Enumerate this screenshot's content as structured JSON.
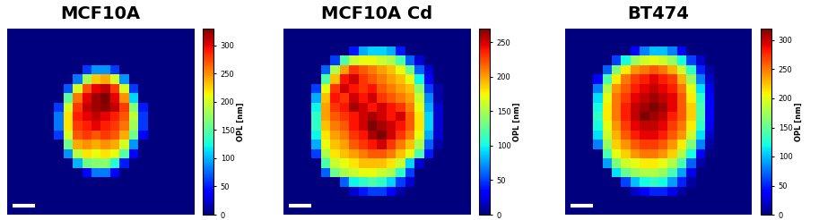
{
  "chart_data": [
    {
      "type": "heatmap",
      "title": "MCF10A",
      "tick_labels": false,
      "colorbar_label": "OPL [nm]",
      "colorbar_lim": [
        0,
        330
      ],
      "colorbar_ticks": [
        0,
        50,
        100,
        150,
        200,
        250,
        300
      ],
      "cells": [
        [
          0,
          0,
          0,
          0,
          0,
          0,
          0,
          0,
          0,
          0,
          0,
          0,
          0,
          0,
          0,
          0,
          0,
          0,
          0,
          0
        ],
        [
          0,
          0,
          0,
          0,
          0,
          0,
          0,
          0,
          0,
          0,
          0,
          0,
          0,
          0,
          0,
          0,
          0,
          0,
          0,
          0
        ],
        [
          0,
          0,
          0,
          0,
          0,
          0,
          0,
          0,
          0,
          0,
          0,
          0,
          0,
          0,
          0,
          0,
          0,
          0,
          0,
          0
        ],
        [
          0,
          0,
          0,
          0,
          0,
          0,
          0,
          0,
          0,
          0,
          0,
          0,
          0,
          0,
          0,
          0,
          0,
          0,
          0,
          0
        ],
        [
          0,
          0,
          0,
          0,
          0,
          0,
          0,
          0,
          60,
          90,
          90,
          60,
          0,
          0,
          0,
          0,
          0,
          0,
          0,
          0
        ],
        [
          0,
          0,
          0,
          0,
          0,
          0,
          0,
          80,
          180,
          230,
          240,
          200,
          90,
          0,
          0,
          0,
          0,
          0,
          0,
          0
        ],
        [
          0,
          0,
          0,
          0,
          0,
          0,
          70,
          200,
          270,
          300,
          310,
          280,
          200,
          60,
          0,
          0,
          0,
          0,
          0,
          0
        ],
        [
          0,
          0,
          0,
          0,
          0,
          0,
          150,
          260,
          300,
          320,
          330,
          300,
          250,
          110,
          0,
          0,
          0,
          0,
          0,
          0
        ],
        [
          0,
          0,
          0,
          0,
          0,
          60,
          200,
          280,
          310,
          320,
          325,
          310,
          280,
          170,
          50,
          0,
          0,
          0,
          0,
          0
        ],
        [
          0,
          0,
          0,
          0,
          0,
          80,
          220,
          290,
          300,
          310,
          300,
          290,
          270,
          190,
          60,
          0,
          0,
          0,
          0,
          0
        ],
        [
          0,
          0,
          0,
          0,
          0,
          80,
          220,
          280,
          290,
          300,
          290,
          280,
          260,
          180,
          60,
          0,
          0,
          0,
          0,
          0
        ],
        [
          0,
          0,
          0,
          0,
          0,
          60,
          200,
          270,
          280,
          270,
          280,
          270,
          240,
          160,
          40,
          0,
          0,
          0,
          0,
          0
        ],
        [
          0,
          0,
          0,
          0,
          0,
          0,
          160,
          240,
          250,
          240,
          250,
          240,
          200,
          90,
          0,
          0,
          0,
          0,
          0,
          0
        ],
        [
          0,
          0,
          0,
          0,
          0,
          0,
          90,
          190,
          220,
          210,
          220,
          210,
          150,
          40,
          0,
          0,
          0,
          0,
          0,
          0
        ],
        [
          0,
          0,
          0,
          0,
          0,
          0,
          0,
          100,
          160,
          170,
          170,
          130,
          50,
          0,
          0,
          0,
          0,
          0,
          0,
          0
        ],
        [
          0,
          0,
          0,
          0,
          0,
          0,
          0,
          0,
          40,
          80,
          80,
          40,
          0,
          0,
          0,
          0,
          0,
          0,
          0,
          0
        ],
        [
          0,
          0,
          0,
          0,
          0,
          0,
          0,
          0,
          0,
          0,
          0,
          0,
          0,
          0,
          0,
          0,
          0,
          0,
          0,
          0
        ],
        [
          0,
          0,
          0,
          0,
          0,
          0,
          0,
          0,
          0,
          0,
          0,
          0,
          0,
          0,
          0,
          0,
          0,
          0,
          0,
          0
        ],
        [
          0,
          0,
          0,
          0,
          0,
          0,
          0,
          0,
          0,
          0,
          0,
          0,
          0,
          0,
          0,
          0,
          0,
          0,
          0,
          0
        ],
        [
          0,
          0,
          0,
          0,
          0,
          0,
          0,
          0,
          0,
          0,
          0,
          0,
          0,
          0,
          0,
          0,
          0,
          0,
          0,
          0
        ]
      ]
    },
    {
      "type": "heatmap",
      "title": "MCF10A Cd",
      "tick_labels": false,
      "colorbar_label": "OPL [nm]",
      "colorbar_lim": [
        0,
        270
      ],
      "colorbar_ticks": [
        0,
        50,
        100,
        150,
        200,
        250
      ],
      "cells": [
        [
          0,
          0,
          0,
          0,
          0,
          0,
          0,
          0,
          0,
          0,
          0,
          0,
          0,
          0,
          0,
          0,
          0,
          0,
          0,
          0
        ],
        [
          0,
          0,
          0,
          0,
          0,
          0,
          0,
          0,
          0,
          0,
          0,
          0,
          0,
          0,
          0,
          0,
          0,
          0,
          0,
          0
        ],
        [
          0,
          0,
          0,
          0,
          0,
          0,
          0,
          40,
          80,
          90,
          90,
          80,
          40,
          0,
          0,
          0,
          0,
          0,
          0,
          0
        ],
        [
          0,
          0,
          0,
          0,
          0,
          50,
          120,
          160,
          170,
          170,
          160,
          150,
          120,
          60,
          20,
          0,
          0,
          0,
          0,
          0
        ],
        [
          0,
          0,
          0,
          0,
          60,
          150,
          200,
          230,
          220,
          210,
          200,
          190,
          170,
          130,
          60,
          20,
          0,
          0,
          0,
          0
        ],
        [
          0,
          0,
          0,
          0,
          120,
          190,
          240,
          250,
          230,
          220,
          210,
          200,
          190,
          170,
          100,
          30,
          0,
          0,
          0,
          0
        ],
        [
          0,
          0,
          0,
          50,
          170,
          230,
          250,
          240,
          230,
          240,
          220,
          210,
          200,
          190,
          140,
          50,
          10,
          0,
          0,
          0
        ],
        [
          0,
          0,
          0,
          80,
          190,
          240,
          230,
          250,
          240,
          250,
          230,
          220,
          210,
          200,
          160,
          70,
          10,
          0,
          0,
          0
        ],
        [
          0,
          0,
          0,
          100,
          200,
          230,
          240,
          260,
          250,
          240,
          250,
          240,
          230,
          210,
          170,
          80,
          20,
          0,
          0,
          0
        ],
        [
          0,
          0,
          0,
          110,
          200,
          220,
          230,
          240,
          250,
          260,
          250,
          240,
          250,
          220,
          180,
          90,
          20,
          0,
          0,
          0
        ],
        [
          0,
          0,
          0,
          110,
          190,
          210,
          220,
          240,
          250,
          270,
          260,
          250,
          240,
          220,
          180,
          90,
          20,
          0,
          0,
          0
        ],
        [
          0,
          0,
          0,
          100,
          180,
          200,
          210,
          230,
          240,
          260,
          270,
          250,
          230,
          210,
          170,
          80,
          20,
          0,
          0,
          0
        ],
        [
          0,
          0,
          0,
          80,
          170,
          190,
          200,
          220,
          230,
          240,
          250,
          230,
          210,
          190,
          150,
          60,
          10,
          0,
          0,
          0
        ],
        [
          0,
          0,
          0,
          50,
          150,
          180,
          190,
          200,
          210,
          220,
          220,
          210,
          190,
          170,
          120,
          40,
          0,
          0,
          0,
          0
        ],
        [
          0,
          0,
          0,
          0,
          120,
          160,
          170,
          180,
          190,
          190,
          190,
          180,
          160,
          90,
          20,
          0,
          0,
          0,
          0,
          0
        ],
        [
          0,
          0,
          0,
          0,
          60,
          130,
          150,
          160,
          170,
          170,
          160,
          150,
          110,
          50,
          0,
          0,
          0,
          0,
          0,
          0
        ],
        [
          0,
          0,
          0,
          0,
          0,
          0,
          60,
          100,
          110,
          120,
          110,
          90,
          50,
          20,
          0,
          0,
          0,
          0,
          0,
          0
        ],
        [
          0,
          0,
          0,
          0,
          0,
          0,
          0,
          20,
          40,
          50,
          50,
          30,
          10,
          0,
          0,
          0,
          0,
          0,
          0,
          0
        ],
        [
          0,
          0,
          0,
          0,
          0,
          0,
          0,
          0,
          0,
          0,
          0,
          0,
          0,
          0,
          0,
          0,
          0,
          0,
          0,
          0
        ],
        [
          0,
          0,
          0,
          0,
          0,
          0,
          0,
          0,
          0,
          0,
          0,
          0,
          0,
          0,
          0,
          0,
          0,
          0,
          0,
          0
        ]
      ]
    },
    {
      "type": "heatmap",
      "title": "BT474",
      "tick_labels": false,
      "colorbar_label": "OPL [nm]",
      "colorbar_lim": [
        0,
        320
      ],
      "colorbar_ticks": [
        0,
        50,
        100,
        150,
        200,
        250,
        300
      ],
      "cells": [
        [
          0,
          0,
          0,
          0,
          0,
          0,
          0,
          0,
          0,
          0,
          0,
          0,
          0,
          0,
          0,
          0,
          0,
          0,
          0,
          0
        ],
        [
          0,
          0,
          0,
          0,
          0,
          0,
          0,
          0,
          0,
          0,
          0,
          0,
          0,
          0,
          0,
          0,
          0,
          0,
          0,
          0
        ],
        [
          0,
          0,
          0,
          0,
          0,
          0,
          0,
          40,
          80,
          100,
          100,
          80,
          40,
          0,
          0,
          0,
          0,
          0,
          0,
          0
        ],
        [
          0,
          0,
          0,
          0,
          0,
          60,
          120,
          170,
          190,
          200,
          190,
          170,
          120,
          60,
          20,
          0,
          0,
          0,
          0,
          0
        ],
        [
          0,
          0,
          0,
          0,
          70,
          160,
          210,
          240,
          250,
          260,
          250,
          230,
          190,
          130,
          50,
          10,
          0,
          0,
          0,
          0
        ],
        [
          0,
          0,
          0,
          40,
          140,
          210,
          250,
          270,
          280,
          290,
          280,
          270,
          230,
          170,
          80,
          20,
          0,
          0,
          0,
          0
        ],
        [
          0,
          0,
          0,
          80,
          180,
          240,
          260,
          280,
          290,
          300,
          290,
          280,
          250,
          200,
          110,
          30,
          0,
          0,
          0,
          0
        ],
        [
          0,
          0,
          0,
          110,
          200,
          250,
          270,
          290,
          300,
          310,
          300,
          290,
          260,
          210,
          130,
          40,
          0,
          0,
          0,
          0
        ],
        [
          0,
          0,
          0,
          120,
          210,
          250,
          280,
          300,
          310,
          320,
          310,
          290,
          260,
          220,
          140,
          40,
          0,
          0,
          0,
          0
        ],
        [
          0,
          0,
          0,
          130,
          210,
          250,
          280,
          300,
          320,
          310,
          300,
          280,
          260,
          220,
          140,
          40,
          0,
          0,
          0,
          0
        ],
        [
          0,
          0,
          0,
          120,
          200,
          240,
          270,
          290,
          300,
          300,
          290,
          270,
          250,
          210,
          130,
          30,
          0,
          0,
          0,
          0
        ],
        [
          0,
          0,
          0,
          110,
          190,
          230,
          260,
          280,
          290,
          290,
          280,
          260,
          240,
          190,
          110,
          20,
          0,
          0,
          0,
          0
        ],
        [
          0,
          0,
          0,
          80,
          170,
          220,
          240,
          260,
          270,
          270,
          260,
          240,
          210,
          160,
          80,
          10,
          0,
          0,
          0,
          0
        ],
        [
          0,
          0,
          0,
          0,
          140,
          200,
          220,
          240,
          250,
          250,
          240,
          220,
          180,
          120,
          40,
          0,
          0,
          0,
          0,
          0
        ],
        [
          0,
          0,
          0,
          0,
          90,
          160,
          190,
          200,
          210,
          210,
          200,
          180,
          140,
          70,
          10,
          0,
          0,
          0,
          0,
          0
        ],
        [
          0,
          0,
          0,
          0,
          0,
          110,
          150,
          170,
          180,
          180,
          170,
          140,
          90,
          30,
          0,
          0,
          0,
          0,
          0,
          0
        ],
        [
          0,
          0,
          0,
          0,
          0,
          0,
          60,
          100,
          120,
          130,
          120,
          90,
          50,
          10,
          0,
          0,
          0,
          0,
          0,
          0
        ],
        [
          0,
          0,
          0,
          0,
          0,
          0,
          0,
          20,
          40,
          50,
          50,
          30,
          10,
          0,
          0,
          0,
          0,
          0,
          0,
          0
        ],
        [
          0,
          0,
          0,
          0,
          0,
          0,
          0,
          0,
          0,
          0,
          0,
          0,
          0,
          0,
          0,
          0,
          0,
          0,
          0,
          0
        ],
        [
          0,
          0,
          0,
          0,
          0,
          0,
          0,
          0,
          0,
          0,
          0,
          0,
          0,
          0,
          0,
          0,
          0,
          0,
          0,
          0
        ]
      ]
    }
  ]
}
